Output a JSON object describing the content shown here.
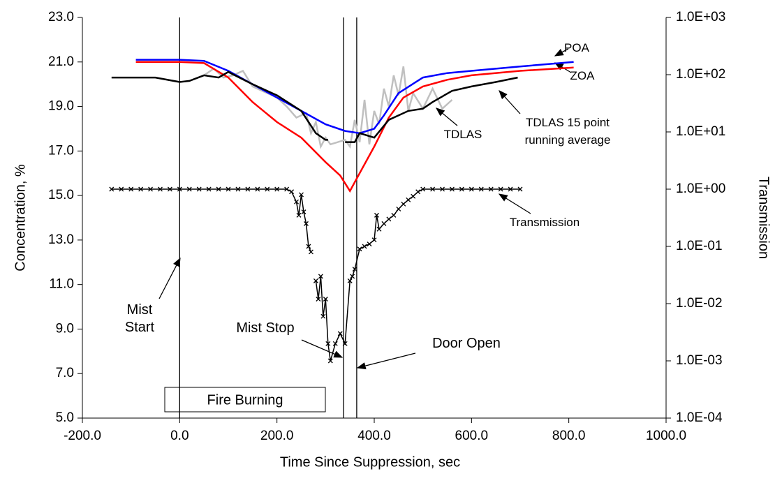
{
  "chart_data": {
    "type": "line",
    "xlabel": "Time Since Suppression, sec",
    "ylabel": "Concentration, %",
    "y2label": "Transmission",
    "xlim": [
      -200,
      1000
    ],
    "xticks": [
      {
        "value": -200,
        "label": "-200.0"
      },
      {
        "value": 0,
        "label": "0.0"
      },
      {
        "value": 200,
        "label": "200.0"
      },
      {
        "value": 400,
        "label": "400.0"
      },
      {
        "value": 600,
        "label": "600.0"
      },
      {
        "value": 800,
        "label": "800.0"
      },
      {
        "value": 1000,
        "label": "1000.0"
      }
    ],
    "ylim": [
      5,
      23
    ],
    "yticks": [
      {
        "value": 5,
        "label": "5.0"
      },
      {
        "value": 7,
        "label": "7.0"
      },
      {
        "value": 9,
        "label": "9.0"
      },
      {
        "value": 11,
        "label": "11.0"
      },
      {
        "value": 13,
        "label": "13.0"
      },
      {
        "value": 15,
        "label": "15.0"
      },
      {
        "value": 17,
        "label": "17.0"
      },
      {
        "value": 19,
        "label": "19.0"
      },
      {
        "value": 21,
        "label": "21.0"
      },
      {
        "value": 23,
        "label": "23.0"
      }
    ],
    "y2lim": [
      0.0001,
      1000
    ],
    "y2scale": "log",
    "y2ticks": [
      {
        "value": 0.0001,
        "label": "1.0E-04"
      },
      {
        "value": 0.001,
        "label": "1.0E-03"
      },
      {
        "value": 0.01,
        "label": "1.0E-02"
      },
      {
        "value": 0.1,
        "label": "1.0E-01"
      },
      {
        "value": 1,
        "label": "1.0E+00"
      },
      {
        "value": 10,
        "label": "1.0E+01"
      },
      {
        "value": 100,
        "label": "1.0E+02"
      },
      {
        "value": 1000,
        "label": "1.0E+03"
      }
    ],
    "series": [
      {
        "name": "TDLAS",
        "color": "#c0c0c0",
        "x": [
          50,
          70,
          90,
          110,
          130,
          150,
          180,
          200,
          220,
          240,
          260,
          270,
          280,
          290,
          300,
          310,
          340,
          350,
          360,
          370,
          380,
          390,
          400,
          410,
          420,
          430,
          440,
          450,
          460,
          470,
          480,
          500,
          520,
          540,
          560
        ],
        "values": [
          20.4,
          20.7,
          20.3,
          20.4,
          20.6,
          19.9,
          19.6,
          19.4,
          19.0,
          18.5,
          18.7,
          17.8,
          18.3,
          17.2,
          17.6,
          17.3,
          17.5,
          17.2,
          18.4,
          17.4,
          19.3,
          17.3,
          18.8,
          18.2,
          19.8,
          19.0,
          20.4,
          19.5,
          20.8,
          18.8,
          19.6,
          18.9,
          19.8,
          18.9,
          19.3
        ]
      },
      {
        "name": "POA",
        "color": "#0000ff",
        "x": [
          -90,
          0,
          50,
          100,
          150,
          200,
          250,
          300,
          340,
          370,
          400,
          420,
          450,
          500,
          550,
          600,
          700,
          810
        ],
        "values": [
          21.1,
          21.1,
          21.05,
          20.6,
          20.0,
          19.4,
          18.8,
          18.2,
          17.9,
          17.8,
          18.0,
          18.6,
          19.6,
          20.3,
          20.5,
          20.6,
          20.8,
          21.0
        ]
      },
      {
        "name": "ZOA",
        "color": "#ff0000",
        "x": [
          -90,
          0,
          50,
          100,
          150,
          200,
          250,
          300,
          330,
          350,
          370,
          400,
          430,
          460,
          500,
          550,
          600,
          700,
          810
        ],
        "values": [
          21.0,
          21.0,
          20.95,
          20.3,
          19.2,
          18.3,
          17.6,
          16.5,
          15.9,
          15.2,
          16.0,
          17.2,
          18.5,
          19.4,
          19.9,
          20.2,
          20.4,
          20.6,
          20.75
        ]
      },
      {
        "name": "TDLAS 15 point running average",
        "color": "#000000",
        "x": [
          -140,
          -50,
          0,
          20,
          50,
          80,
          100,
          150,
          200,
          250,
          280,
          300,
          305,
          320,
          340,
          360,
          370,
          400,
          430,
          470,
          500,
          520,
          560,
          600,
          650,
          695
        ],
        "values": [
          20.3,
          20.3,
          20.1,
          20.15,
          20.4,
          20.3,
          20.55,
          20.0,
          19.5,
          18.8,
          17.8,
          17.5,
          17.5,
          null,
          17.4,
          17.4,
          17.8,
          17.6,
          18.4,
          18.8,
          18.9,
          19.2,
          19.7,
          19.9,
          20.1,
          20.3
        ]
      },
      {
        "name": "Transmission",
        "color": "#000000",
        "axis": "y2",
        "marker": "x",
        "x": [
          -140,
          -120,
          -100,
          -80,
          -60,
          -40,
          -20,
          0,
          20,
          40,
          60,
          80,
          100,
          120,
          140,
          160,
          180,
          200,
          220,
          230,
          240,
          245,
          250,
          255,
          260,
          265,
          270,
          275,
          280,
          285,
          290,
          295,
          300,
          305,
          310,
          320,
          330,
          340,
          350,
          355,
          360,
          370,
          380,
          390,
          400,
          405,
          410,
          420,
          430,
          440,
          450,
          460,
          470,
          480,
          490,
          500,
          520,
          540,
          560,
          580,
          600,
          620,
          640,
          660,
          680,
          700
        ],
        "values": [
          1,
          1,
          1,
          1,
          1,
          1,
          1,
          1,
          1,
          1,
          1,
          1,
          1,
          1,
          1,
          1,
          1,
          1,
          1,
          0.9,
          0.6,
          0.35,
          0.8,
          0.4,
          0.25,
          0.1,
          0.08,
          null,
          0.025,
          0.012,
          0.03,
          0.006,
          0.012,
          0.002,
          0.001,
          0.002,
          0.003,
          0.002,
          0.025,
          0.03,
          0.04,
          0.09,
          0.1,
          0.11,
          0.13,
          0.35,
          0.2,
          0.25,
          0.3,
          0.35,
          0.45,
          0.55,
          0.65,
          0.75,
          0.9,
          1,
          1,
          1,
          1,
          1,
          1,
          1,
          1,
          1,
          1,
          1
        ]
      }
    ],
    "events": [
      {
        "label": "Mist Start",
        "x": 0
      },
      {
        "label": "Mist Stop",
        "x": 337
      },
      {
        "label": "Door Open",
        "x": 364
      }
    ],
    "fire_label": "Fire Burning"
  }
}
